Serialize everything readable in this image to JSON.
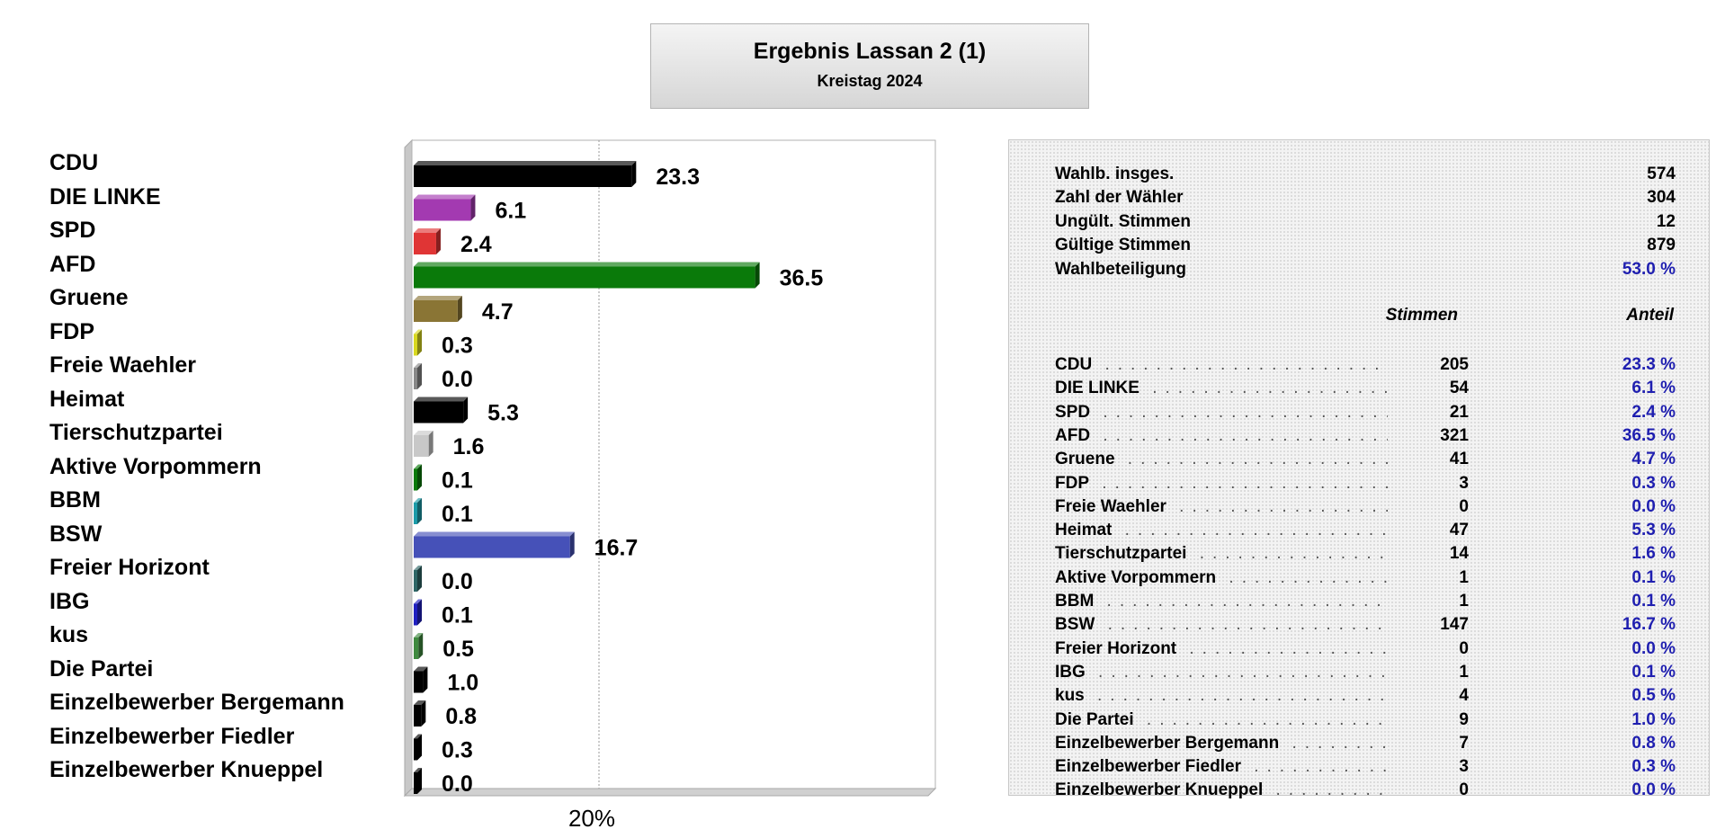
{
  "header": {
    "title": "Ergebnis Lassan 2 (1)",
    "subtitle": "Kreistag 2024"
  },
  "chart_data": {
    "type": "bar",
    "orientation": "horizontal",
    "categories": [
      "CDU",
      "DIE LINKE",
      "SPD",
      "AFD",
      "Gruene",
      "FDP",
      "Freie Waehler",
      "Heimat",
      "Tierschutzpartei",
      "Aktive Vorpommern",
      "BBM",
      "BSW",
      "Freier Horizont",
      "IBG",
      "kus",
      "Die Partei",
      "Einzelbewerber Bergemann",
      "Einzelbewerber Fiedler",
      "Einzelbewerber Knueppel"
    ],
    "values": [
      23.3,
      6.1,
      2.4,
      36.5,
      4.7,
      0.3,
      0.0,
      5.3,
      1.6,
      0.1,
      0.1,
      16.7,
      0.0,
      0.1,
      0.5,
      1.0,
      0.8,
      0.3,
      0.0
    ],
    "value_labels": [
      "23.3",
      "6.1",
      "2.4",
      "36.5",
      "4.7",
      "0.3",
      "0.0",
      "5.3",
      "1.6",
      "0.1",
      "0.1",
      "16.7",
      "0.0",
      "0.1",
      "0.5",
      "1.0",
      "0.8",
      "0.3",
      "0.0"
    ],
    "colors": [
      "#000000",
      "#a33ab1",
      "#e03535",
      "#0a7a0a",
      "#8a7535",
      "#d8d820",
      "#888888",
      "#000000",
      "#c8c8c8",
      "#0a7a0a",
      "#1c9ba8",
      "#4651b8",
      "#2f6666",
      "#2020c0",
      "#3f8a3f",
      "#000000",
      "#000000",
      "#000000",
      "#000000"
    ],
    "xlim": [
      0,
      56
    ],
    "gridline": 20,
    "gridline_label": "20%"
  },
  "stats": {
    "summary": [
      {
        "label": "Wahlb. insges.",
        "value": "574"
      },
      {
        "label": "Zahl der Wähler",
        "value": "304"
      },
      {
        "label": "Ungült. Stimmen",
        "value": "12"
      },
      {
        "label": "Gültige Stimmen",
        "value": "879"
      },
      {
        "label": "Wahlbeteiligung",
        "value": "53.0 %"
      }
    ],
    "col_votes": "Stimmen",
    "col_share": "Anteil",
    "rows": [
      {
        "name": "CDU",
        "votes": "205",
        "share": "23.3 %"
      },
      {
        "name": "DIE LINKE",
        "votes": "54",
        "share": "6.1 %"
      },
      {
        "name": "SPD",
        "votes": "21",
        "share": "2.4 %"
      },
      {
        "name": "AFD",
        "votes": "321",
        "share": "36.5 %"
      },
      {
        "name": "Gruene",
        "votes": "41",
        "share": "4.7 %"
      },
      {
        "name": "FDP",
        "votes": "3",
        "share": "0.3 %"
      },
      {
        "name": "Freie Waehler",
        "votes": "0",
        "share": "0.0 %"
      },
      {
        "name": "Heimat",
        "votes": "47",
        "share": "5.3 %"
      },
      {
        "name": "Tierschutzpartei",
        "votes": "14",
        "share": "1.6 %"
      },
      {
        "name": "Aktive Vorpommern",
        "votes": "1",
        "share": "0.1 %"
      },
      {
        "name": "BBM",
        "votes": "1",
        "share": "0.1 %"
      },
      {
        "name": "BSW",
        "votes": "147",
        "share": "16.7 %"
      },
      {
        "name": "Freier Horizont",
        "votes": "0",
        "share": "0.0 %"
      },
      {
        "name": "IBG",
        "votes": "1",
        "share": "0.1 %"
      },
      {
        "name": "kus",
        "votes": "4",
        "share": "0.5 %"
      },
      {
        "name": "Die Partei",
        "votes": "9",
        "share": "1.0 %"
      },
      {
        "name": "Einzelbewerber Bergemann",
        "votes": "7",
        "share": "0.8 %"
      },
      {
        "name": "Einzelbewerber Fiedler",
        "votes": "3",
        "share": "0.3 %"
      },
      {
        "name": "Einzelbewerber Knueppel",
        "votes": "0",
        "share": "0.0 %"
      }
    ]
  }
}
